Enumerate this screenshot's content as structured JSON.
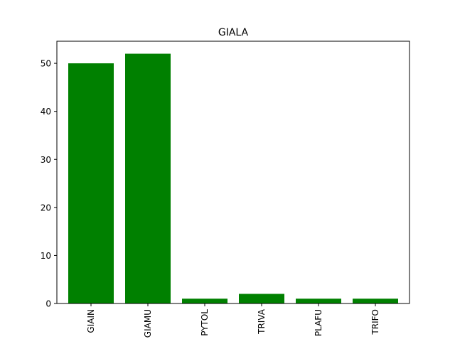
{
  "chart_data": {
    "type": "bar",
    "title": "GIALA",
    "xlabel": "",
    "ylabel": "",
    "categories": [
      "GIAIN",
      "GIAMU",
      "PYTOL",
      "TRIVA",
      "PLAFU",
      "TRIFO"
    ],
    "values": [
      50,
      52,
      1,
      2,
      1,
      1
    ],
    "ylim": [
      0,
      54.6
    ],
    "yticks": [
      0,
      10,
      20,
      30,
      40,
      50
    ],
    "bar_color": "#008000",
    "grid": false,
    "legend": "none"
  }
}
